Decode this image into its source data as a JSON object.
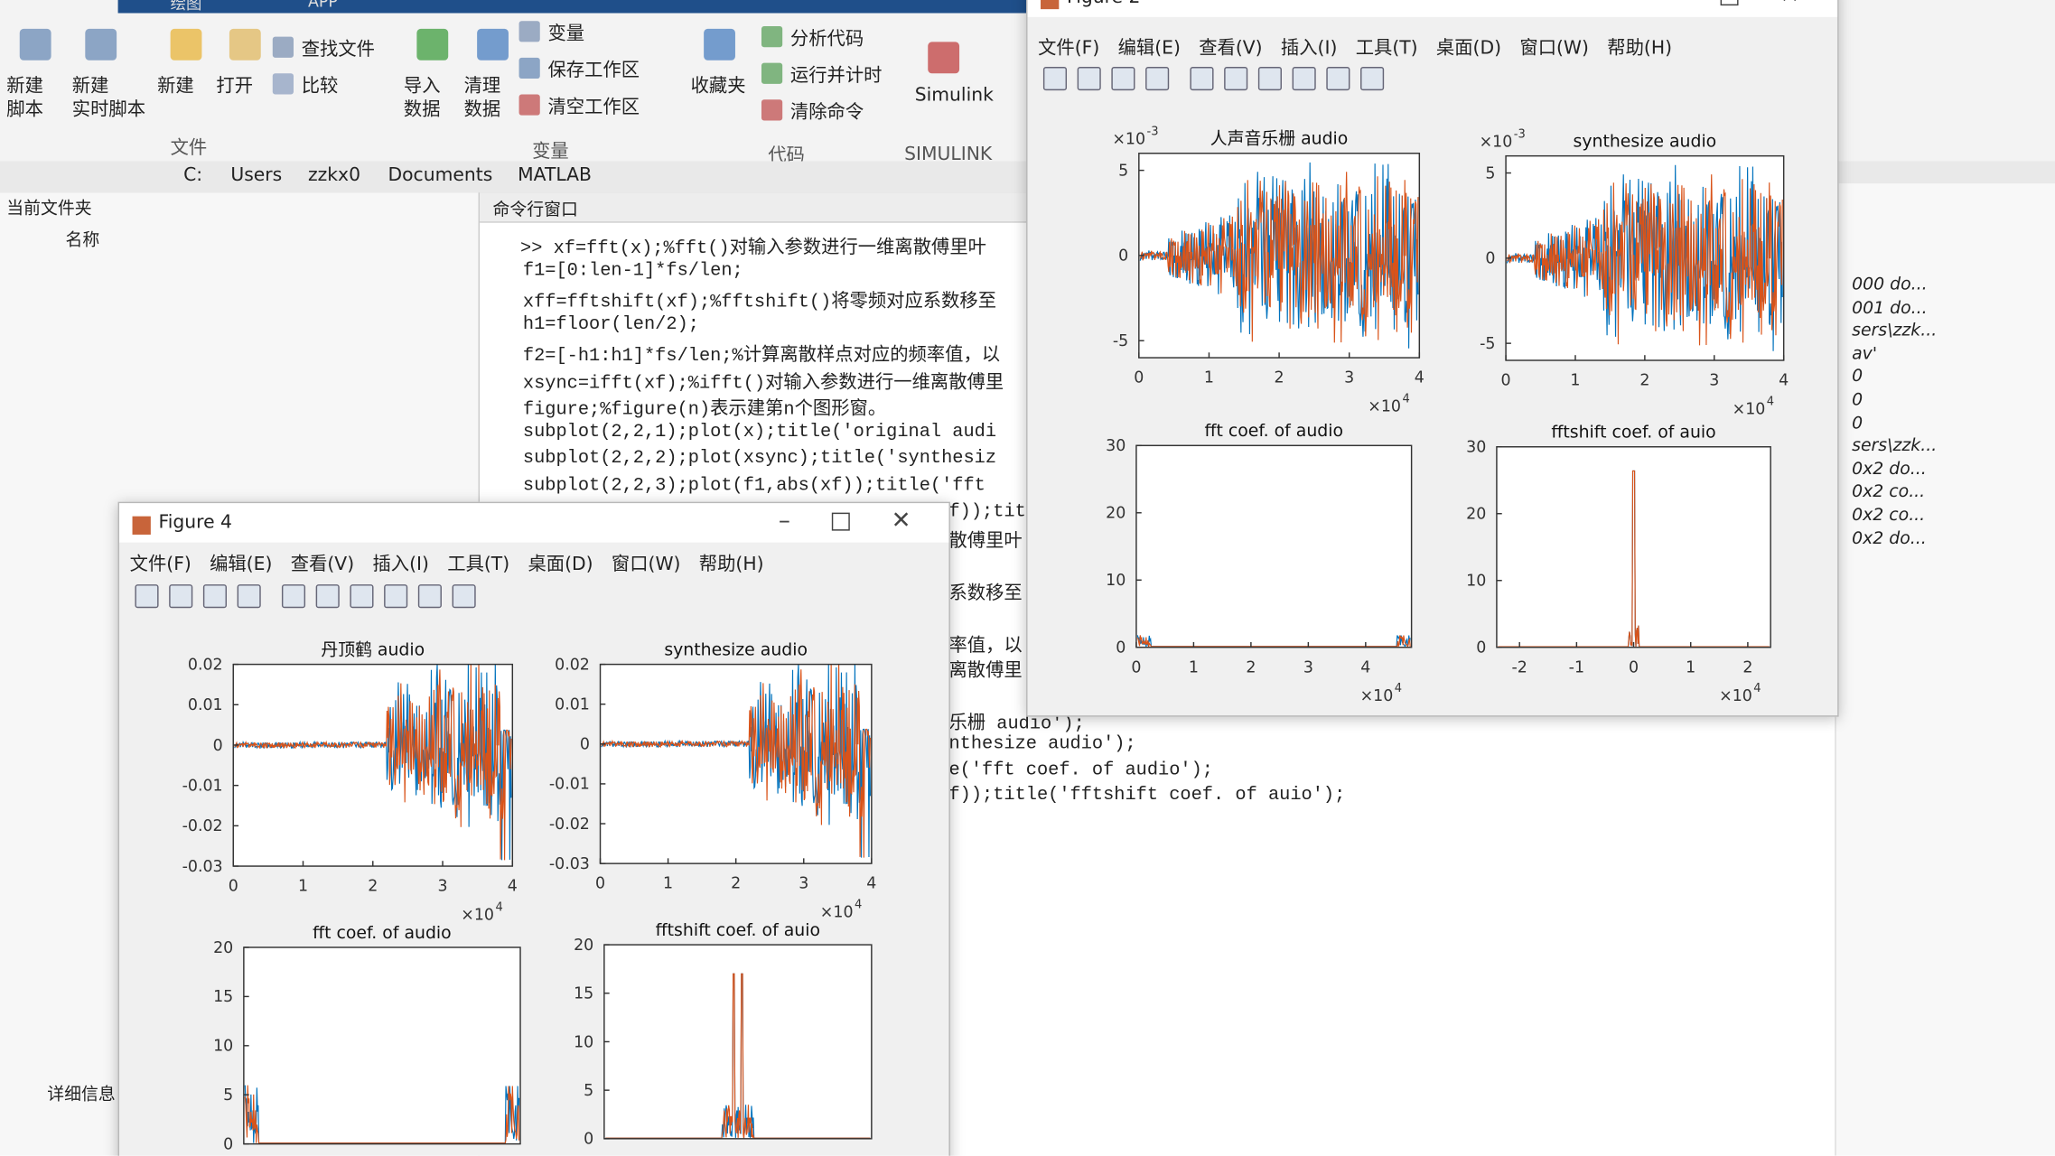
{
  "tabs": [
    "绘图",
    "APP"
  ],
  "toolbar": {
    "buttons": [
      {
        "lines": [
          "新建",
          "脚本"
        ]
      },
      {
        "lines": [
          "新建",
          "实时脚本"
        ]
      },
      {
        "lines": [
          "新建"
        ]
      },
      {
        "lines": [
          "打开"
        ]
      },
      {
        "lines": [
          "查找文件"
        ]
      },
      {
        "lines": [
          "比较"
        ]
      },
      {
        "lines": [
          "导入",
          "数据"
        ]
      },
      {
        "lines": [
          "清理",
          "数据"
        ]
      },
      {
        "lines": [
          "变量"
        ]
      },
      {
        "lines": [
          "保存工作区"
        ]
      },
      {
        "lines": [
          "清空工作区"
        ]
      },
      {
        "lines": [
          "收藏夹"
        ]
      },
      {
        "lines": [
          "分析代码"
        ]
      },
      {
        "lines": [
          "运行并计时"
        ]
      },
      {
        "lines": [
          "清除命令"
        ]
      },
      {
        "lines": [
          "Simulink"
        ]
      }
    ],
    "sections": [
      "文件",
      "变量",
      "代码",
      "SIMULINK"
    ]
  },
  "path": [
    "C:",
    "Users",
    "zzkx0",
    "Documents",
    "MATLAB"
  ],
  "file_panel": {
    "title": "当前文件夹",
    "column": "名称",
    "details": "详细信息"
  },
  "command_window": {
    "title": "命令行窗口",
    "lines": [
      ">> xf=fft(x);%fft()对输入参数进行一维离散傅里叶",
      "f1=[0:len-1]*fs/len;",
      "xff=fftshift(xf);%fftshift()将零频对应系数移至",
      "h1=floor(len/2);",
      "f2=[-h1:h1]*fs/len;%计算离散样点对应的频率值，以",
      "xsync=ifft(xf);%ifft()对输入参数进行一维离散傅里",
      "figure;%figure(n)表示建第n个图形窗。",
      "subplot(2,2,1);plot(x);title('original audi",
      "subplot(2,2,2);plot(xsync);title('synthesiz",
      "subplot(2,2,3);plot(f1,abs(xf));title('fft"
    ],
    "fragments": [
      "f));tit",
      "散傅里叶",
      "系数移至",
      "率值，以",
      "离散傅里",
      "乐栅 audio');",
      "nthesize audio');",
      "e('fft coef. of audio');",
      "f));title('fftshift coef. of auio');"
    ]
  },
  "workspace": [
    "000 do...",
    "001 do...",
    "sers\\zzk...",
    "av'",
    "0",
    "0",
    "0",
    "sers\\zzk...",
    "0x2 do...",
    "0x2 co...",
    "0x2 co...",
    "0x2 do..."
  ],
  "figures": [
    {
      "title": "Figure 2",
      "menu": [
        "文件(F)",
        "编辑(E)",
        "查看(V)",
        "插入(I)",
        "工具(T)",
        "桌面(D)",
        "窗口(W)",
        "帮助(H)"
      ],
      "plots": [
        {
          "title": "人声音乐栅 audio",
          "xlim": [
            0,
            40000
          ],
          "ylim": [
            -0.006,
            0.006
          ],
          "xticks": [
            0,
            {
              "value": 10000,
              "label": "1"
            },
            {
              "value": 20000,
              "label": "2"
            },
            {
              "value": 30000,
              "label": "3"
            },
            {
              "value": 40000,
              "label": "4"
            }
          ],
          "yticks": [
            {
              "value": 0.005,
              "label": "5"
            },
            0,
            {
              "value": -0.005,
              "label": "-5"
            }
          ],
          "x_exponent": {
            "base": "×10",
            "power": "4"
          },
          "y_exponent": {
            "base": "×10",
            "power": "-3"
          }
        },
        {
          "title": "synthesize audio",
          "xlim": [
            0,
            40000
          ],
          "ylim": [
            -0.006,
            0.006
          ],
          "xticks": [
            0,
            {
              "value": 10000,
              "label": "1"
            },
            {
              "value": 20000,
              "label": "2"
            },
            {
              "value": 30000,
              "label": "3"
            },
            {
              "value": 40000,
              "label": "4"
            }
          ],
          "yticks": [
            {
              "value": 0.005,
              "label": "5"
            },
            0,
            {
              "value": -0.005,
              "label": "-5"
            }
          ],
          "x_exponent": {
            "base": "×10",
            "power": "4"
          },
          "y_exponent": {
            "base": "×10",
            "power": "-3"
          }
        },
        {
          "title": "fft coef. of audio",
          "xlim": [
            0,
            48000
          ],
          "ylim": [
            0,
            30
          ],
          "xticks": [
            0,
            {
              "value": 10000,
              "label": "1"
            },
            {
              "value": 20000,
              "label": "2"
            },
            {
              "value": 30000,
              "label": "3"
            },
            {
              "value": 40000,
              "label": "4"
            }
          ],
          "yticks": [
            0,
            10,
            20,
            30
          ],
          "x_exponent": {
            "base": "×10",
            "power": "4"
          }
        },
        {
          "title": "fftshift coef. of auio",
          "xlim": [
            -24000,
            24000
          ],
          "ylim": [
            0,
            30
          ],
          "xticks": [
            {
              "value": -20000,
              "label": "-2"
            },
            {
              "value": -10000,
              "label": "-1"
            },
            0,
            {
              "value": 10000,
              "label": "1"
            },
            {
              "value": 20000,
              "label": "2"
            }
          ],
          "yticks": [
            0,
            10,
            20,
            30
          ],
          "x_exponent": {
            "base": "×10",
            "power": "4"
          }
        }
      ]
    },
    {
      "title": "Figure 4",
      "menu": [
        "文件(F)",
        "编辑(E)",
        "查看(V)",
        "插入(I)",
        "工具(T)",
        "桌面(D)",
        "窗口(W)",
        "帮助(H)"
      ],
      "plots": [
        {
          "title": "丹顶鹤 audio",
          "xlim": [
            0,
            40000
          ],
          "ylim": [
            -0.03,
            0.02
          ],
          "xticks": [
            0,
            {
              "value": 10000,
              "label": "1"
            },
            {
              "value": 20000,
              "label": "2"
            },
            {
              "value": 30000,
              "label": "3"
            },
            {
              "value": 40000,
              "label": "4"
            }
          ],
          "yticks": [
            0.02,
            0.01,
            0,
            -0.01,
            -0.02,
            -0.03
          ],
          "x_exponent": {
            "base": "×10",
            "power": "4"
          }
        },
        {
          "title": "synthesize audio",
          "xlim": [
            0,
            40000
          ],
          "ylim": [
            -0.03,
            0.02
          ],
          "xticks": [
            0,
            {
              "value": 10000,
              "label": "1"
            },
            {
              "value": 20000,
              "label": "2"
            },
            {
              "value": 30000,
              "label": "3"
            },
            {
              "value": 40000,
              "label": "4"
            }
          ],
          "yticks": [
            0.02,
            0.01,
            0,
            -0.01,
            -0.02,
            -0.03
          ],
          "x_exponent": {
            "base": "×10",
            "power": "4"
          }
        },
        {
          "title": "fft coef. of audio",
          "xlim": [
            0,
            40000
          ],
          "ylim": [
            0,
            20
          ],
          "xticks": [],
          "yticks": [
            0,
            5,
            10,
            15,
            20
          ]
        },
        {
          "title": "fftshift coef. of auio",
          "xlim": [
            -20000,
            20000
          ],
          "ylim": [
            0,
            20
          ],
          "xticks": [],
          "yticks": [
            0,
            5,
            10,
            15,
            20
          ]
        }
      ]
    }
  ]
}
